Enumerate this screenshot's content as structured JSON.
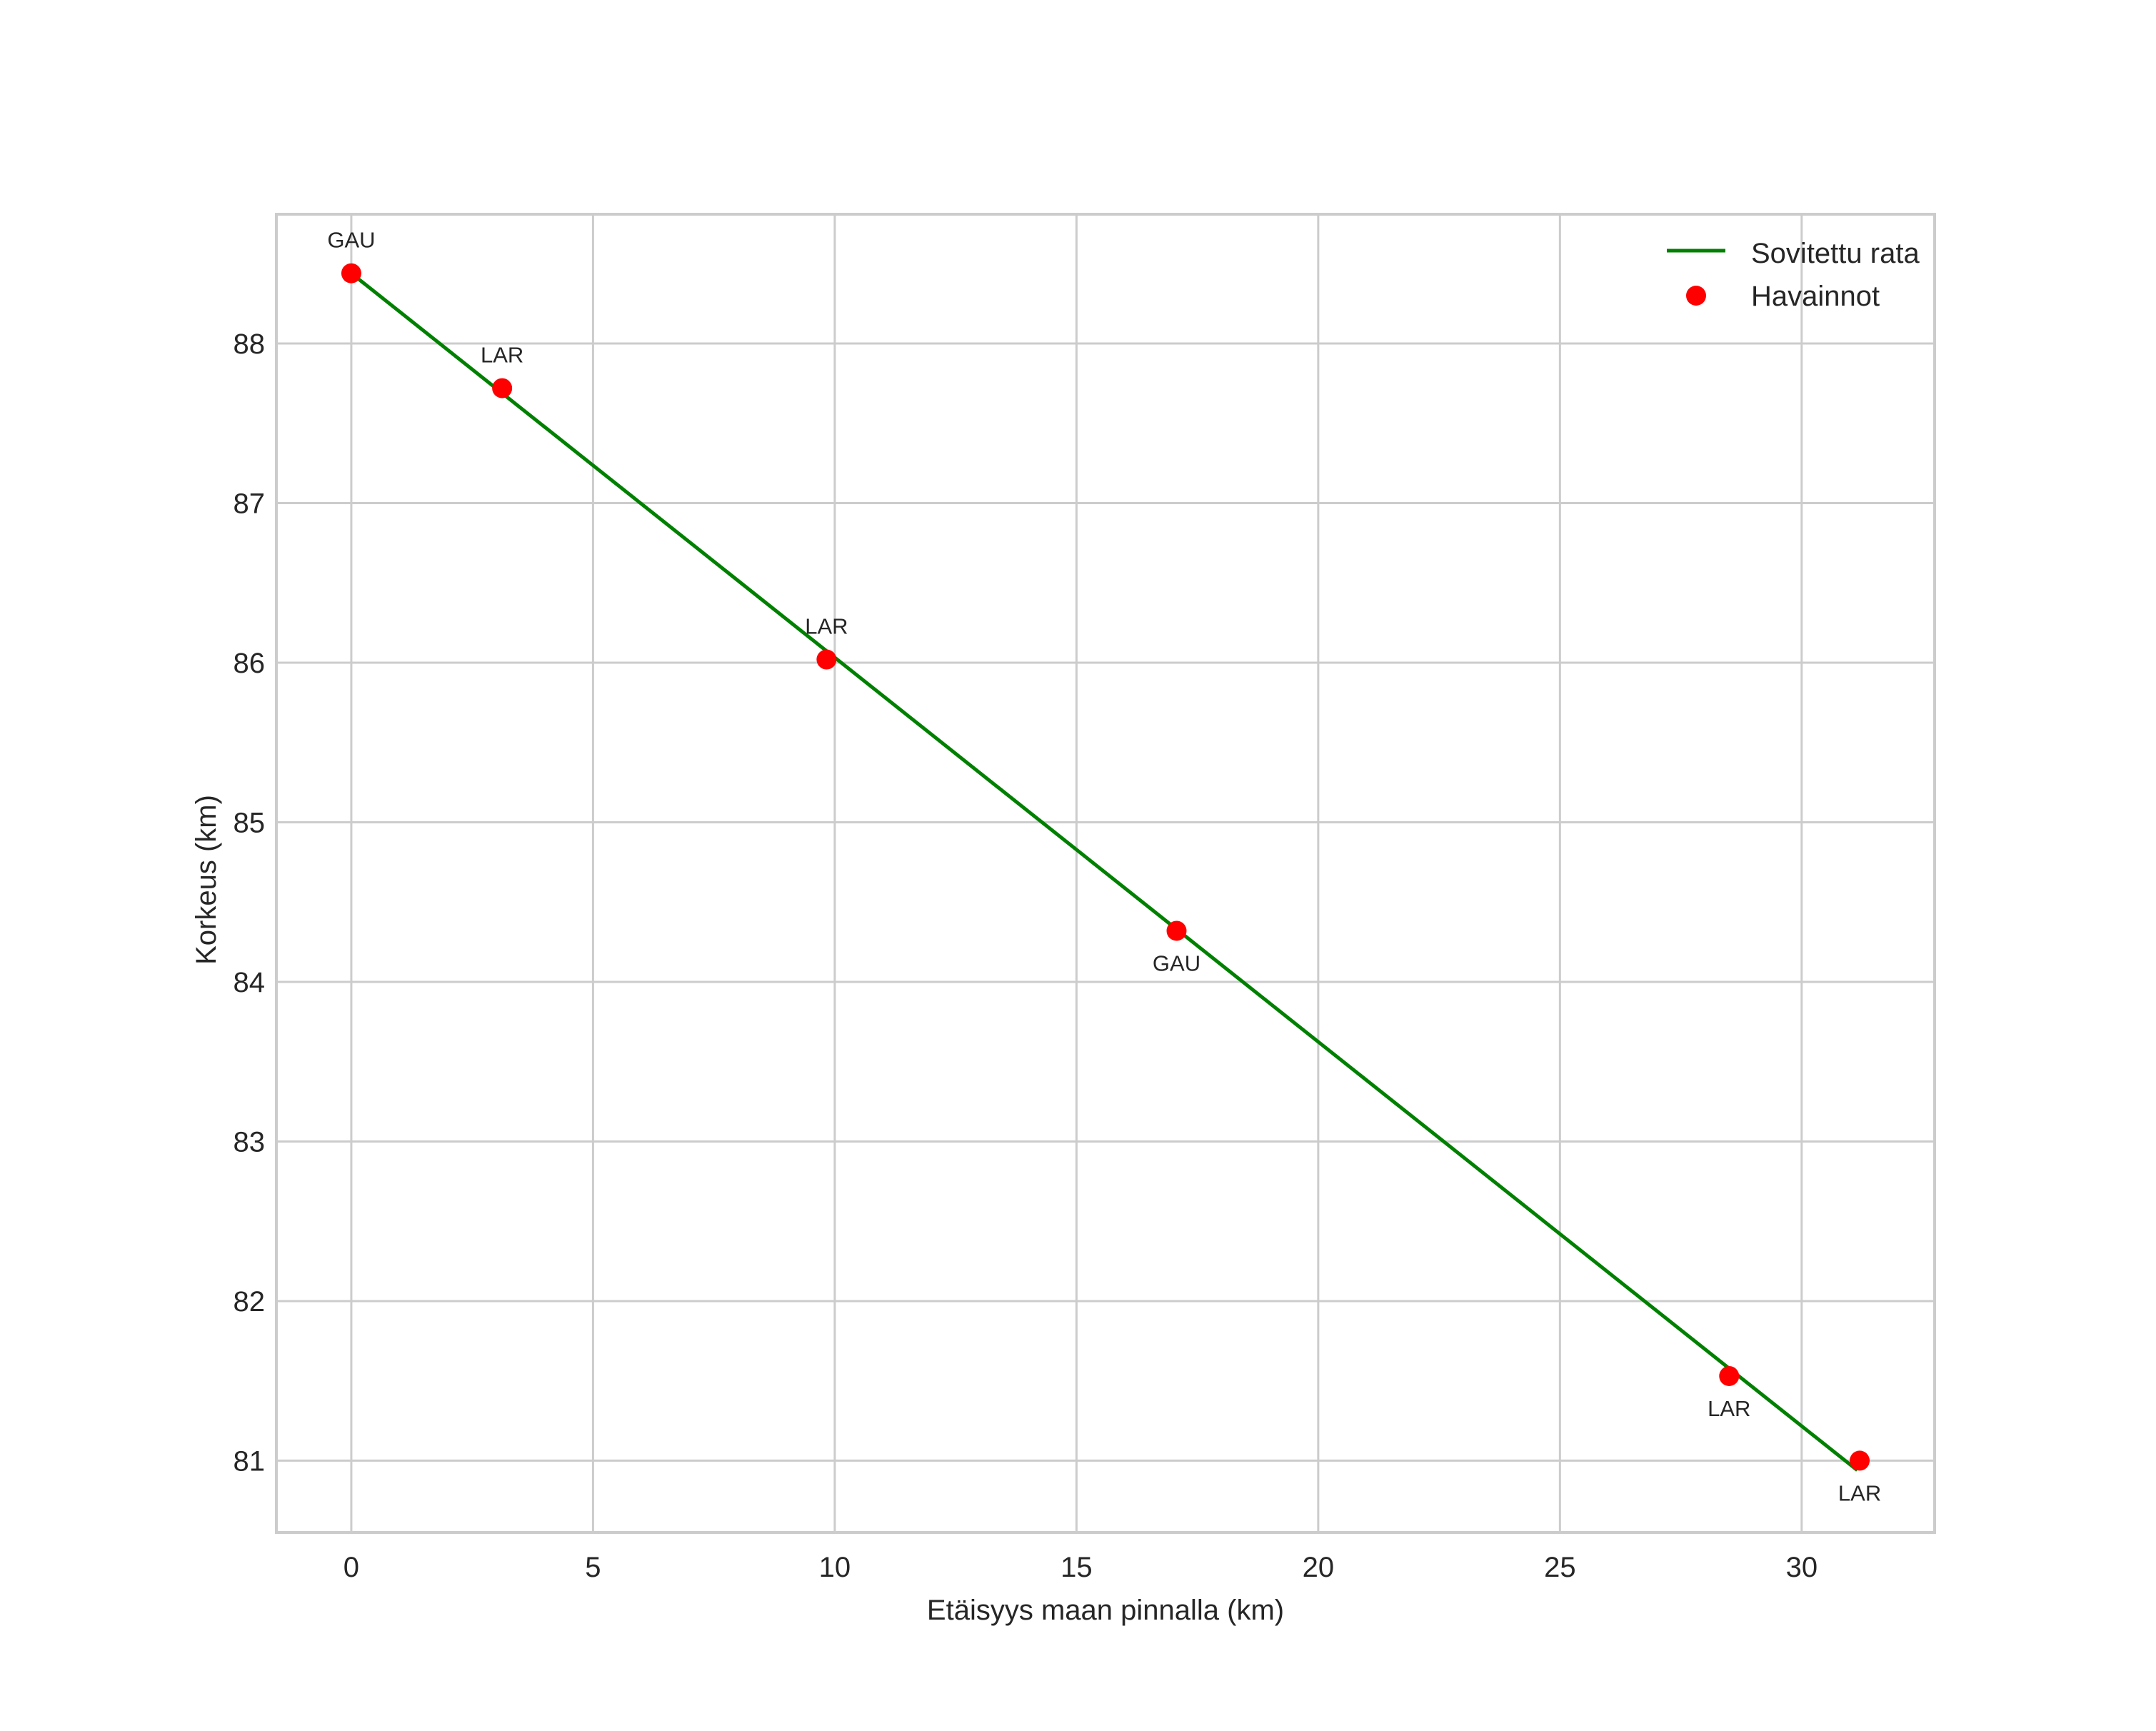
{
  "chart_data": {
    "type": "line",
    "title": "",
    "xlabel": "Etäisyys maan pinnalla (km)",
    "ylabel": "Korkeus (km)",
    "xlim": [
      -1.55,
      32.75
    ],
    "ylim": [
      80.55,
      88.81
    ],
    "xticks": [
      0,
      5,
      10,
      15,
      20,
      25,
      30
    ],
    "yticks": [
      81,
      82,
      83,
      84,
      85,
      86,
      87,
      88
    ],
    "grid": true,
    "legend_position": "upper right",
    "series": [
      {
        "name": "Sovitettu rata",
        "kind": "line",
        "color": "#008000",
        "x": [
          0.0,
          31.15
        ],
        "y": [
          88.44,
          80.94
        ]
      },
      {
        "name": "Havainnot",
        "kind": "scatter",
        "color": "#ff0000",
        "points": [
          {
            "x": 0.0,
            "y": 88.44,
            "label": "GAU",
            "label_pos": "above"
          },
          {
            "x": 3.12,
            "y": 87.72,
            "label": "LAR",
            "label_pos": "above"
          },
          {
            "x": 9.83,
            "y": 86.02,
            "label": "LAR",
            "label_pos": "above"
          },
          {
            "x": 17.07,
            "y": 84.32,
            "label": "GAU",
            "label_pos": "below"
          },
          {
            "x": 28.5,
            "y": 81.53,
            "label": "LAR",
            "label_pos": "below"
          },
          {
            "x": 31.2,
            "y": 81.0,
            "label": "LAR",
            "label_pos": "below"
          }
        ]
      }
    ]
  },
  "legend": {
    "items": [
      {
        "label": "Sovitettu rata",
        "marker": "line",
        "color": "#008000"
      },
      {
        "label": "Havainnot",
        "marker": "dot",
        "color": "#ff0000"
      }
    ]
  },
  "style": {
    "grid_color": "#cccccc",
    "frame_color": "#cccccc",
    "text_color": "#262626"
  }
}
